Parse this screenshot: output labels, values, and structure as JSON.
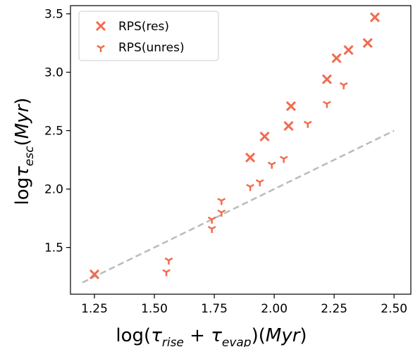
{
  "chart_data": {
    "type": "scatter",
    "xlabel": "log(τrise + τevap)(Myr)",
    "xlabel_parts": {
      "pre": "log(",
      "tau1": "τ",
      "sub1": "rise",
      "mid": " + ",
      "tau2": "τ",
      "sub2": "evap",
      "post": ")(",
      "unit": "Myr",
      "close": ")"
    },
    "ylabel": "logτesc(Myr)",
    "ylabel_parts": {
      "pre": "log",
      "tau": "τ",
      "sub": "esc",
      "open": "(",
      "unit": "Myr",
      "close": ")"
    },
    "xlim": [
      1.15,
      2.57
    ],
    "ylim": [
      1.1,
      3.57
    ],
    "xticks": [
      "1.25",
      "1.50",
      "1.75",
      "2.00",
      "2.25",
      "2.50"
    ],
    "yticks": [
      "1.5",
      "2.0",
      "2.5",
      "3.0",
      "3.5"
    ],
    "grid": false,
    "legend_position": "top-left",
    "series": [
      {
        "name": "RPS(res)",
        "marker": "x",
        "color": "#f26b4f",
        "points": [
          [
            1.25,
            1.27
          ],
          [
            1.9,
            2.27
          ],
          [
            1.96,
            2.45
          ],
          [
            2.06,
            2.54
          ],
          [
            2.07,
            2.71
          ],
          [
            2.22,
            2.94
          ],
          [
            2.26,
            3.12
          ],
          [
            2.31,
            3.19
          ],
          [
            2.39,
            3.25
          ],
          [
            2.42,
            3.47
          ]
        ]
      },
      {
        "name": "RPS(unres)",
        "marker": "tri_down",
        "color": "#f26b4f",
        "points": [
          [
            1.55,
            1.29
          ],
          [
            1.56,
            1.39
          ],
          [
            1.74,
            1.66
          ],
          [
            1.74,
            1.74
          ],
          [
            1.78,
            1.8
          ],
          [
            1.78,
            1.9
          ],
          [
            1.9,
            2.02
          ],
          [
            1.94,
            2.06
          ],
          [
            1.99,
            2.21
          ],
          [
            2.04,
            2.26
          ],
          [
            2.14,
            2.56
          ],
          [
            2.22,
            2.73
          ],
          [
            2.29,
            2.89
          ]
        ]
      }
    ],
    "reference_line": {
      "style": "dashed",
      "color": "#bbbbbb",
      "points": [
        [
          1.2,
          1.2
        ],
        [
          2.5,
          2.5
        ]
      ]
    }
  }
}
